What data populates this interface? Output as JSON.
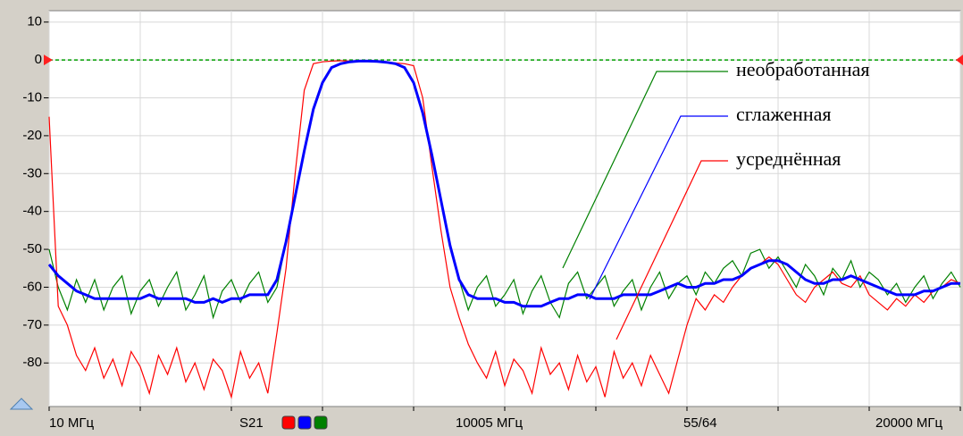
{
  "chart_data": {
    "type": "line",
    "x": [
      10,
      209.9,
      409.8,
      609.7,
      809.6,
      1009.5,
      1209.4,
      1409.3,
      1609.2,
      1809.1,
      2009,
      2208.9,
      2408.8,
      2608.7,
      2808.6,
      3008.5,
      3208.4,
      3408.3,
      3608.2,
      3808.1,
      4008,
      4207.9,
      4407.8,
      4607.7,
      4807.6,
      5007.5,
      5207.4,
      5407.3,
      5607.2,
      5807.1,
      6007,
      6206.9,
      6406.8,
      6606.7,
      6806.6,
      7006.5,
      7206.4,
      7406.3,
      7606.2,
      7806.1,
      8006,
      8205.9,
      8405.8,
      8605.7,
      8805.6,
      9005.5,
      9205.4,
      9405.3,
      9605.2,
      9805.1,
      10005,
      10204.9,
      10404.8,
      10604.7,
      10804.6,
      11004.5,
      11204.4,
      11404.3,
      11604.2,
      11804.1,
      12004,
      12203.9,
      12403.8,
      12603.7,
      12803.6,
      13003.5,
      13203.4,
      13403.3,
      13603.2,
      13803.1,
      14003,
      14202.9,
      14402.8,
      14602.7,
      14802.6,
      15002.5,
      15202.4,
      15402.3,
      15602.2,
      15802.1,
      16002,
      16201.9,
      16401.8,
      16601.7,
      16801.6,
      17001.5,
      17201.4,
      17401.3,
      17601.2,
      17801.1,
      18001,
      18200.9,
      18400.8,
      18600.7,
      18800.6,
      19000.5,
      19200.4,
      19400.3,
      19600.2,
      19800.1,
      20000
    ],
    "series": [
      {
        "name": "необработанная",
        "color": "#008000",
        "values": [
          -50,
          -60,
          -66,
          -58,
          -64,
          -58,
          -66,
          -60,
          -57,
          -67,
          -61,
          -58,
          -65,
          -60,
          -56,
          -66,
          -62,
          -57,
          -68,
          -61,
          -58,
          -64,
          -59,
          -56,
          -64,
          -60,
          -48,
          -36,
          -24,
          -13,
          -6,
          -2,
          -1,
          -0.5,
          -0.3,
          -0.3,
          -0.4,
          -0.6,
          -1,
          -2,
          -6,
          -14,
          -25,
          -37,
          -49,
          -58,
          -66,
          -60,
          -57,
          -65,
          -62,
          -58,
          -67,
          -61,
          -57,
          -64,
          -68,
          -59,
          -56,
          -63,
          -60,
          -57,
          -65,
          -61,
          -58,
          -66,
          -60,
          -56,
          -63,
          -59,
          -57,
          -62,
          -56,
          -59,
          -55,
          -53,
          -57,
          -51,
          -50,
          -55,
          -52,
          -56,
          -60,
          -54,
          -57,
          -62,
          -55,
          -58,
          -53,
          -60,
          -56,
          -58,
          -62,
          -59,
          -64,
          -60,
          -57,
          -63,
          -59,
          -56,
          -60
        ]
      },
      {
        "name": "сглаженная",
        "color": "#0000ff",
        "values": [
          -54,
          -57,
          -59,
          -61,
          -62,
          -63,
          -63,
          -63,
          -63,
          -63,
          -63,
          -62,
          -63,
          -63,
          -63,
          -63,
          -64,
          -64,
          -63,
          -64,
          -63,
          -63,
          -62,
          -62,
          -62,
          -58,
          -48,
          -36,
          -24,
          -13,
          -6,
          -2,
          -1,
          -0.5,
          -0.3,
          -0.3,
          -0.4,
          -0.6,
          -1,
          -2,
          -6,
          -14,
          -25,
          -37,
          -49,
          -58,
          -62,
          -63,
          -63,
          -63,
          -64,
          -64,
          -65,
          -65,
          -65,
          -64,
          -63,
          -63,
          -62,
          -62,
          -63,
          -63,
          -63,
          -62,
          -62,
          -62,
          -62,
          -61,
          -60,
          -59,
          -60,
          -60,
          -59,
          -59,
          -58,
          -58,
          -57,
          -55,
          -54,
          -53,
          -53,
          -54,
          -56,
          -58,
          -59,
          -59,
          -58,
          -58,
          -57,
          -58,
          -59,
          -60,
          -61,
          -62,
          -62,
          -62,
          -61,
          -61,
          -60,
          -59,
          -59
        ]
      },
      {
        "name": "усреднённая",
        "color": "#ff0000",
        "values": [
          -15,
          -65,
          -70,
          -78,
          -82,
          -76,
          -84,
          -79,
          -86,
          -77,
          -81,
          -88,
          -78,
          -83,
          -76,
          -85,
          -80,
          -87,
          -79,
          -82,
          -89,
          -77,
          -84,
          -80,
          -88,
          -72,
          -55,
          -30,
          -8,
          -1,
          -0.5,
          -0.3,
          -0.2,
          -0.3,
          -0.3,
          -0.4,
          -0.5,
          -0.6,
          -0.8,
          -1,
          -1.5,
          -10,
          -28,
          -45,
          -60,
          -68,
          -75,
          -80,
          -84,
          -77,
          -86,
          -79,
          -82,
          -88,
          -76,
          -83,
          -80,
          -87,
          -78,
          -85,
          -81,
          -89,
          -77,
          -84,
          -80,
          -86,
          -78,
          -83,
          -88,
          -79,
          -70,
          -63,
          -66,
          -62,
          -64,
          -60,
          -57,
          -55,
          -54,
          -52,
          -54,
          -58,
          -62,
          -64,
          -60,
          -58,
          -56,
          -59,
          -60,
          -57,
          -62,
          -64,
          -66,
          -63,
          -65,
          -62,
          -64,
          -61,
          -60,
          -58,
          -59
        ]
      }
    ],
    "xlim": [
      10,
      20000
    ],
    "xticks": [
      10,
      2009,
      4008,
      6007,
      8006,
      10005,
      12004,
      14003,
      16002,
      18001,
      20000
    ],
    "ylim": [
      -91.5,
      13
    ],
    "yticks": [
      10,
      0,
      -10,
      -20,
      -30,
      -40,
      -50,
      -60,
      -70,
      -80
    ],
    "reference_line": 0,
    "grid": true,
    "status": [
      "10 МГц",
      "S21",
      "10005 МГц",
      "55/64",
      "20000 МГц"
    ]
  }
}
